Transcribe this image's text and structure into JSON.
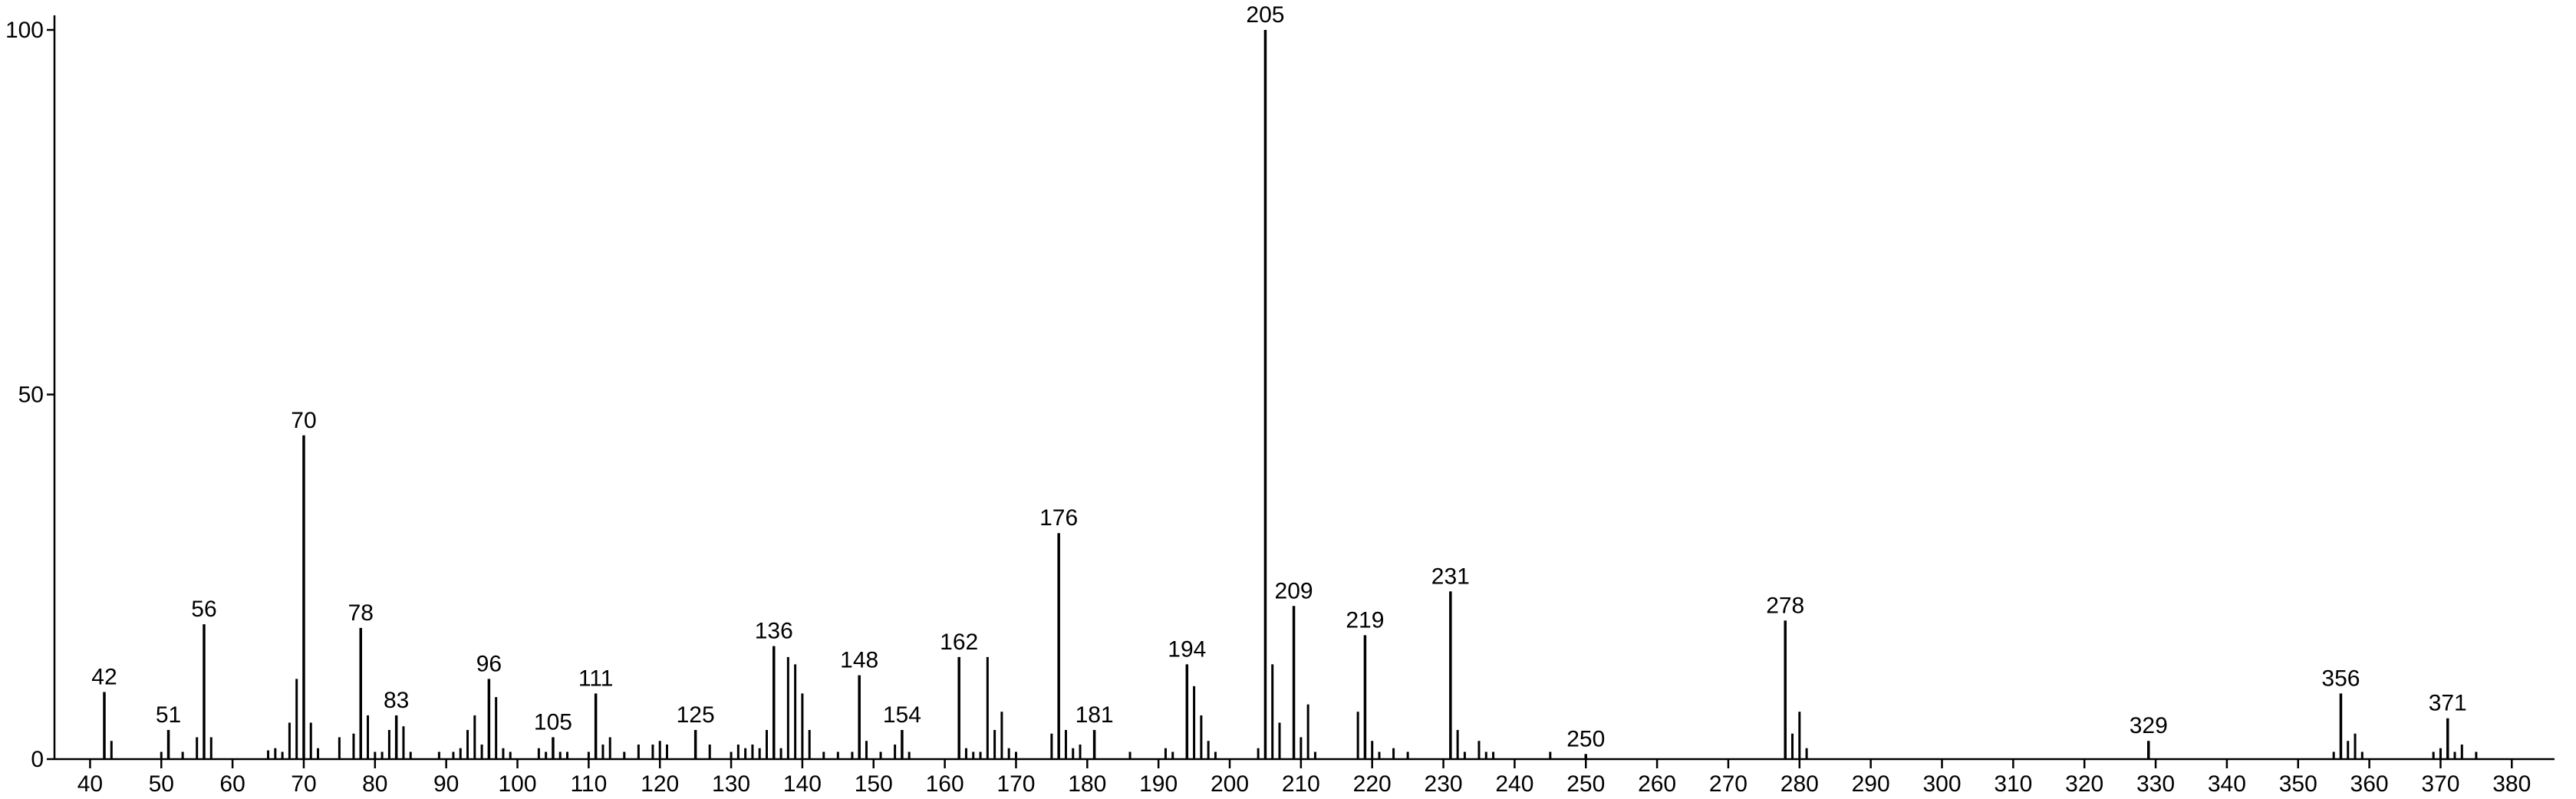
{
  "chart_data": {
    "type": "spectrum",
    "x": [
      42,
      51,
      56,
      70,
      78,
      83,
      96,
      105,
      111,
      125,
      136,
      148,
      154,
      162,
      176,
      181,
      194,
      205,
      209,
      219,
      231,
      250,
      278,
      329,
      356,
      371
    ],
    "values": [
      9.2,
      4,
      18.5,
      44.4,
      18,
      6,
      11,
      3,
      9,
      4,
      15.5,
      11.5,
      4,
      14,
      31,
      4,
      13,
      100,
      21,
      17,
      23,
      0.7,
      19,
      2.5,
      9,
      5.6
    ],
    "minor_x": [
      43,
      50,
      53,
      55,
      57,
      65,
      66,
      67,
      68,
      69,
      71,
      72,
      75,
      77,
      79,
      80,
      81,
      82,
      84,
      85,
      89,
      91,
      92,
      93,
      94,
      95,
      97,
      98,
      99,
      103,
      104,
      106,
      107,
      110,
      112,
      113,
      115,
      117,
      119,
      120,
      121,
      127,
      130,
      131,
      132,
      133,
      134,
      135,
      137,
      138,
      139,
      140,
      141,
      143,
      145,
      147,
      149,
      151,
      153,
      155,
      163,
      164,
      165,
      166,
      167,
      168,
      169,
      170,
      175,
      177,
      178,
      179,
      186,
      191,
      192,
      195,
      196,
      197,
      198,
      204,
      206,
      207,
      210,
      211,
      212,
      218,
      220,
      221,
      223,
      225,
      232,
      233,
      235,
      236,
      237,
      245,
      279,
      280,
      281,
      355,
      357,
      358,
      359,
      369,
      370,
      372,
      373,
      375
    ],
    "minor_values": [
      2.5,
      1,
      1,
      3,
      3,
      1.2,
      1.5,
      1,
      5,
      11,
      5,
      1.5,
      3,
      3.5,
      6,
      1,
      1,
      4,
      4.5,
      1,
      1,
      1,
      1.5,
      4,
      6,
      2,
      8.5,
      1.5,
      1,
      1.5,
      1,
      1,
      1,
      1,
      2,
      3,
      1,
      2,
      2,
      2.5,
      2,
      2,
      1,
      2,
      1.5,
      2,
      1.5,
      4,
      1.5,
      14,
      13,
      9,
      4,
      1,
      1,
      1,
      2.5,
      1,
      2,
      1,
      1.5,
      1,
      1,
      14,
      4,
      6.5,
      1.5,
      1,
      3.5,
      4,
      1.5,
      2,
      1,
      1.5,
      1,
      10,
      6,
      2.5,
      1,
      1.5,
      13,
      5,
      3,
      7.5,
      1,
      6.5,
      2.5,
      1,
      1.5,
      1,
      4,
      1,
      2.5,
      1,
      1,
      1,
      3.5,
      6.5,
      1.5,
      1,
      2.5,
      3.5,
      1,
      1,
      1.5,
      1,
      2,
      1
    ],
    "xlim": [
      35,
      386
    ],
    "ylim": [
      0,
      100
    ],
    "xticks": [
      40,
      50,
      60,
      70,
      80,
      90,
      100,
      110,
      120,
      130,
      140,
      150,
      160,
      170,
      180,
      190,
      200,
      210,
      220,
      230,
      240,
      250,
      260,
      270,
      280,
      290,
      300,
      310,
      320,
      330,
      340,
      350,
      360,
      370,
      380
    ],
    "yticks": [
      0,
      50,
      100
    ],
    "color": "#000000"
  }
}
